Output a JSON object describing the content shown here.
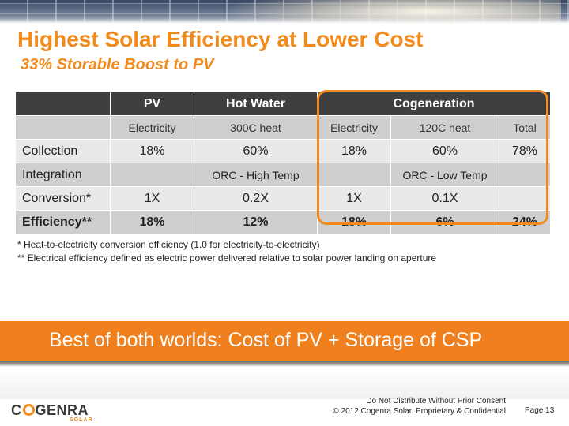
{
  "slide": {
    "title": "Highest Solar Efficiency at Lower Cost",
    "subtitle": "33% Storable Boost to PV"
  },
  "table": {
    "header": [
      "",
      "PV",
      "Hot Water",
      "Cogeneration"
    ],
    "units": [
      "",
      "Electricity",
      "300C heat",
      "Electricity",
      "120C heat",
      "Total"
    ],
    "rows": [
      {
        "label": "Collection",
        "cells": [
          "18%",
          "60%",
          "18%",
          "60%",
          "78%"
        ]
      },
      {
        "label": "Integration",
        "cells": [
          "",
          "ORC - High Temp",
          "",
          "ORC - Low Temp",
          ""
        ]
      },
      {
        "label": "Conversion*",
        "cells": [
          "1X",
          "0.2X",
          "1X",
          "0.1X",
          ""
        ]
      },
      {
        "label": "Efficiency**",
        "cells": [
          "18%",
          "12%",
          "18%",
          "6%",
          "24%"
        ]
      }
    ]
  },
  "notes": [
    "* Heat-to-electricity conversion efficiency (1.0 for electricity-to-electricity)",
    "** Electrical efficiency defined as electric power delivered relative to solar power landing on aperture"
  ],
  "callout": "Best of both worlds: Cost of PV + Storage of CSP",
  "footer": {
    "logo_prefix": "C",
    "logo_suffix": "GENRA",
    "logo_sub": "SOLAR",
    "legal_line1": "Do Not Distribute Without Prior Consent",
    "legal_line2": "© 2012 Cogenra Solar. Proprietary & Confidential",
    "page": "Page 13"
  },
  "colors": {
    "accent": "#f28a1c",
    "header_bg": "#3f3f3f",
    "row_dark": "#cfcfcf",
    "row_light": "#e9e9e9"
  }
}
